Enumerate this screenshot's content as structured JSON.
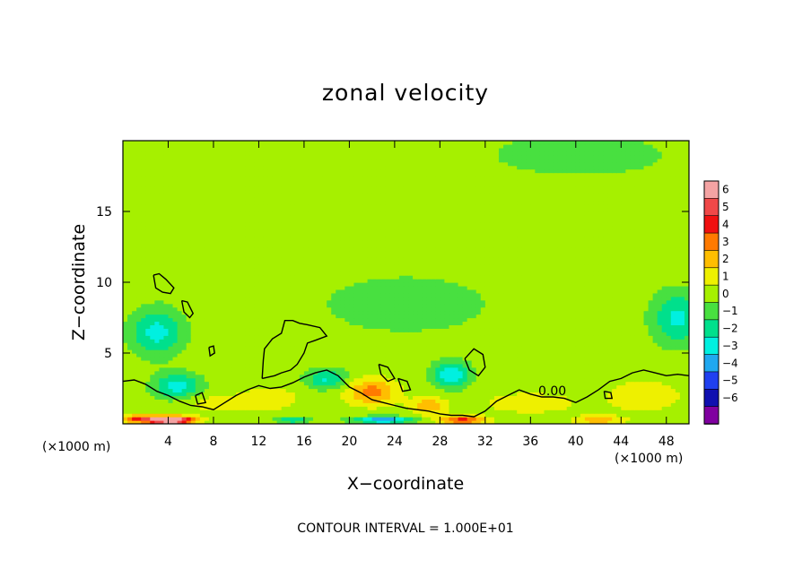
{
  "chart_data": {
    "type": "heatmap",
    "title": "zonal velocity",
    "xlabel": "X−coordinate",
    "ylabel": "Z−coordinate",
    "x_unit_left": "(×1000 m)",
    "x_unit_right": "(×1000 m)",
    "xlim": [
      0,
      50
    ],
    "ylim": [
      0,
      20
    ],
    "x_ticks": [
      4,
      8,
      12,
      16,
      20,
      24,
      28,
      32,
      36,
      40,
      44,
      48
    ],
    "x_tick_labels": [
      "4",
      "8",
      "12",
      "16",
      "20",
      "24",
      "28",
      "32",
      "36",
      "40",
      "44",
      "48"
    ],
    "y_ticks": [
      5,
      10,
      15
    ],
    "y_tick_labels": [
      "5",
      "10",
      "15"
    ],
    "footnote": "CONTOUR INTERVAL = 1.000E+01",
    "contour_label": "0.00",
    "contour_level": 0,
    "colorbar": {
      "levels": [
        "6",
        "5",
        "4",
        "3",
        "2",
        "1",
        "0",
        "−1",
        "−2",
        "−3",
        "−4",
        "−5",
        "−6"
      ],
      "colors": [
        "#f4a3a3",
        "#f04848",
        "#f01010",
        "#ff7a00",
        "#ffbe00",
        "#eef000",
        "#a6f000",
        "#48e040",
        "#00e08c",
        "#00f0e0",
        "#20a8f0",
        "#2040f0",
        "#1010b0",
        "#8000a0"
      ]
    },
    "background_value": -0.5,
    "features": [
      {
        "x": 16,
        "z": 18.5,
        "rx": 30,
        "rz": 2.5,
        "v": 0.2
      },
      {
        "x": 40,
        "z": 19,
        "rx": 8,
        "rz": 1.5,
        "v": -1.4
      },
      {
        "x": 26,
        "z": 15,
        "rx": 16,
        "rz": 3,
        "v": 0.1
      },
      {
        "x": 25,
        "z": 8.5,
        "rx": 9,
        "rz": 2.5,
        "v": -0.9
      },
      {
        "x": 3,
        "z": 6.5,
        "rx": 2.2,
        "rz": 1.6,
        "v": -3.0
      },
      {
        "x": 4.8,
        "z": 2.7,
        "rx": 2,
        "rz": 0.9,
        "v": -3.1
      },
      {
        "x": 18,
        "z": 3.2,
        "rx": 1.8,
        "rz": 0.7,
        "v": -2.6
      },
      {
        "x": 29,
        "z": 3.5,
        "rx": 1.6,
        "rz": 0.9,
        "v": -3.3
      },
      {
        "x": 49,
        "z": 7.5,
        "rx": 2.2,
        "rz": 1.8,
        "v": -2.8
      },
      {
        "x": 46,
        "z": 2.0,
        "rx": 3,
        "rz": 1.0,
        "v": 1.5
      },
      {
        "x": 22,
        "z": 2.3,
        "rx": 2.2,
        "rz": 0.9,
        "v": 2.9
      },
      {
        "x": 27,
        "z": 1.3,
        "rx": 1.5,
        "rz": 0.6,
        "v": 2.2
      },
      {
        "x": 13,
        "z": 1.8,
        "rx": 2.5,
        "rz": 0.8,
        "v": 1.2
      },
      {
        "x": 36,
        "z": 1.5,
        "rx": 4,
        "rz": 0.7,
        "v": 1.2
      },
      {
        "x": 8,
        "z": 1.5,
        "rx": 3,
        "rz": 0.7,
        "v": 0.9
      },
      {
        "x": 2.5,
        "z": 0.35,
        "rx": 3,
        "rz": 0.3,
        "v": 4.5
      },
      {
        "x": 4.5,
        "z": 0.25,
        "rx": 1.8,
        "rz": 0.25,
        "v": 5.2
      },
      {
        "x": 30,
        "z": 0.3,
        "rx": 2,
        "rz": 0.3,
        "v": 4.0
      },
      {
        "x": 23,
        "z": 0.3,
        "rx": 2.5,
        "rz": 0.25,
        "v": -4.5
      },
      {
        "x": 15,
        "z": 0.3,
        "rx": 1.5,
        "rz": 0.25,
        "v": -2.5
      },
      {
        "x": 42,
        "z": 0.3,
        "rx": 2,
        "rz": 0.3,
        "v": 2.5
      }
    ],
    "zero_contours": [
      [
        [
          0,
          3.0
        ],
        [
          1,
          3.1
        ],
        [
          2,
          2.8
        ],
        [
          3,
          2.3
        ],
        [
          4,
          2.0
        ],
        [
          5,
          1.6
        ],
        [
          6,
          1.3
        ],
        [
          7,
          1.2
        ],
        [
          8,
          1.0
        ],
        [
          9,
          1.5
        ],
        [
          10,
          2.0
        ],
        [
          11,
          2.4
        ],
        [
          12,
          2.7
        ],
        [
          13,
          2.5
        ],
        [
          14,
          2.6
        ],
        [
          15,
          2.9
        ],
        [
          16,
          3.3
        ],
        [
          17,
          3.6
        ],
        [
          18,
          3.8
        ],
        [
          19,
          3.4
        ],
        [
          20,
          2.6
        ],
        [
          21,
          2.2
        ],
        [
          22,
          1.7
        ],
        [
          23,
          1.5
        ],
        [
          24,
          1.3
        ],
        [
          25,
          1.1
        ],
        [
          26,
          1.0
        ],
        [
          27,
          0.9
        ],
        [
          28,
          0.7
        ],
        [
          29,
          0.6
        ],
        [
          30,
          0.6
        ],
        [
          31,
          0.5
        ],
        [
          32,
          0.9
        ],
        [
          33,
          1.6
        ],
        [
          34,
          2.0
        ],
        [
          35,
          2.4
        ],
        [
          36,
          2.1
        ],
        [
          37,
          1.9
        ],
        [
          38,
          1.9
        ],
        [
          39,
          1.8
        ],
        [
          40,
          1.5
        ],
        [
          41,
          1.9
        ],
        [
          42,
          2.4
        ],
        [
          43,
          3.0
        ],
        [
          44,
          3.2
        ],
        [
          45,
          3.6
        ],
        [
          46,
          3.8
        ],
        [
          47,
          3.6
        ],
        [
          48,
          3.4
        ],
        [
          49,
          3.5
        ],
        [
          50,
          3.4
        ]
      ],
      [
        [
          12.3,
          3.2
        ],
        [
          12.4,
          4.5
        ],
        [
          12.5,
          5.3
        ],
        [
          13.2,
          6.0
        ],
        [
          14.0,
          6.4
        ],
        [
          14.3,
          7.3
        ],
        [
          15.0,
          7.3
        ],
        [
          15.6,
          7.1
        ],
        [
          16.3,
          7.0
        ],
        [
          17.4,
          6.8
        ],
        [
          18.0,
          6.2
        ],
        [
          17.0,
          5.9
        ],
        [
          16.3,
          5.7
        ],
        [
          16.0,
          5.0
        ],
        [
          15.4,
          4.2
        ],
        [
          14.8,
          3.8
        ],
        [
          14.0,
          3.6
        ],
        [
          13.4,
          3.4
        ],
        [
          12.3,
          3.2
        ]
      ],
      [
        [
          2.7,
          10.5
        ],
        [
          3.2,
          10.6
        ],
        [
          3.8,
          10.2
        ],
        [
          4.5,
          9.6
        ],
        [
          4.2,
          9.2
        ],
        [
          3.5,
          9.3
        ],
        [
          2.9,
          9.6
        ],
        [
          2.7,
          10.5
        ]
      ],
      [
        [
          5.2,
          8.7
        ],
        [
          5.7,
          8.6
        ],
        [
          6.2,
          7.8
        ],
        [
          5.9,
          7.5
        ],
        [
          5.4,
          7.9
        ],
        [
          5.2,
          8.7
        ]
      ],
      [
        [
          7.6,
          5.4
        ],
        [
          8.0,
          5.5
        ],
        [
          8.1,
          5.0
        ],
        [
          7.7,
          4.8
        ],
        [
          7.6,
          5.4
        ]
      ],
      [
        [
          30.2,
          4.6
        ],
        [
          31.0,
          5.3
        ],
        [
          31.8,
          4.9
        ],
        [
          32.0,
          4.0
        ],
        [
          31.4,
          3.4
        ],
        [
          30.6,
          3.8
        ],
        [
          30.2,
          4.6
        ]
      ],
      [
        [
          22.6,
          4.2
        ],
        [
          23.4,
          4.0
        ],
        [
          24.0,
          3.2
        ],
        [
          23.4,
          3.0
        ],
        [
          22.8,
          3.5
        ],
        [
          22.6,
          4.2
        ]
      ],
      [
        [
          24.3,
          3.2
        ],
        [
          25.1,
          3.0
        ],
        [
          25.4,
          2.4
        ],
        [
          24.7,
          2.3
        ],
        [
          24.3,
          3.2
        ]
      ],
      [
        [
          6.4,
          2.0
        ],
        [
          7.0,
          2.2
        ],
        [
          7.3,
          1.5
        ],
        [
          6.6,
          1.4
        ],
        [
          6.4,
          2.0
        ]
      ],
      [
        [
          42.5,
          2.3
        ],
        [
          43.1,
          2.2
        ],
        [
          43.2,
          1.8
        ],
        [
          42.6,
          1.8
        ],
        [
          42.5,
          2.3
        ]
      ]
    ]
  }
}
